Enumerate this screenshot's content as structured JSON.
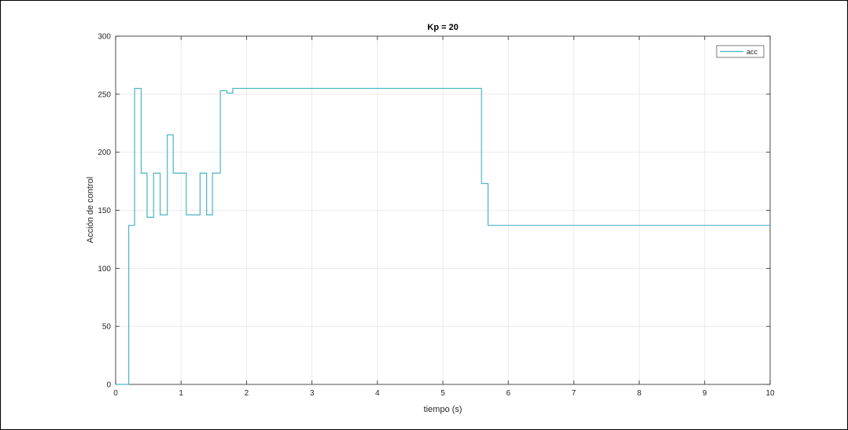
{
  "chart_data": {
    "type": "line",
    "title": "Kp = 20",
    "xlabel": "tiempo (s)",
    "ylabel": "Acción de control",
    "xlim": [
      0,
      10
    ],
    "ylim": [
      0,
      300
    ],
    "xticks": [
      0,
      1,
      2,
      3,
      4,
      5,
      6,
      7,
      8,
      9,
      10
    ],
    "yticks": [
      0,
      50,
      100,
      150,
      200,
      250,
      300
    ],
    "grid": true,
    "legend": {
      "placement": "top-right",
      "entries": [
        "acc"
      ]
    },
    "series": [
      {
        "name": "acc",
        "color": "#4ab5c4",
        "step": true,
        "x": [
          0,
          0.2,
          0.2,
          0.29,
          0.29,
          0.39,
          0.39,
          0.48,
          0.48,
          0.58,
          0.58,
          0.68,
          0.68,
          0.79,
          0.79,
          0.88,
          0.88,
          1.08,
          1.08,
          1.29,
          1.29,
          1.39,
          1.39,
          1.48,
          1.48,
          1.6,
          1.6,
          1.7,
          1.7,
          1.79,
          1.79,
          5.59,
          5.59,
          5.69,
          5.69,
          10
        ],
        "y": [
          0,
          0,
          137,
          137,
          255,
          255,
          182,
          182,
          144,
          144,
          182,
          182,
          146,
          146,
          215,
          215,
          182,
          182,
          146,
          146,
          182,
          182,
          146,
          146,
          182,
          182,
          253,
          253,
          251,
          251,
          255,
          255,
          173,
          173,
          137,
          137
        ]
      }
    ]
  }
}
